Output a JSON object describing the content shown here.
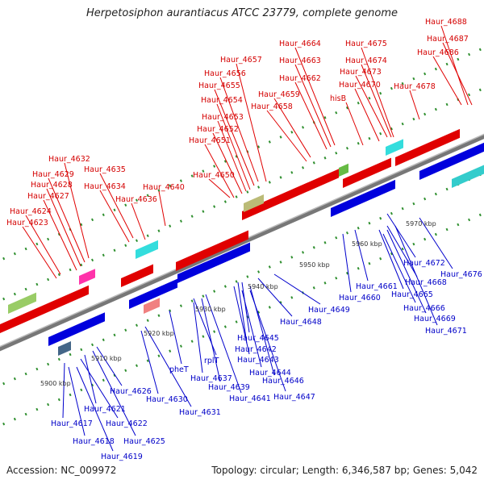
{
  "title": "Herpetosiphon aurantiacus ATCC 23779, complete genome",
  "footer": {
    "accession": "Accession: NC_009972",
    "summary": "Topology: circular; Length: 6,346,587 bp; Genes: 5,042"
  },
  "scale_labels": [
    "5900 kbp",
    "5910 kbp",
    "5920 kbp",
    "5930 kbp",
    "5940 kbp",
    "5950 kbp",
    "5960 kbp",
    "5970 kbp"
  ],
  "top_labels": [
    "Haur_4688",
    "Haur_4687",
    "Haur_4686",
    "Haur_4678",
    "Haur_4675",
    "Haur_4674",
    "Haur_4673",
    "Haur_4670",
    "hisB",
    "Haur_4664",
    "Haur_4663",
    "Haur_4662",
    "Haur_4659",
    "Haur_4658",
    "Haur_4657",
    "Haur_4656",
    "Haur_4655",
    "Haur_4654",
    "Haur_4653",
    "Haur_4652",
    "Haur_4651",
    "Haur_4650",
    "Haur_4640",
    "Haur_4636",
    "Haur_4635",
    "Haur_4634",
    "Haur_4632",
    "Haur_4629",
    "Haur_4628",
    "Haur_4627",
    "Haur_4624",
    "Haur_4623"
  ],
  "bottom_labels": [
    "Haur_4676",
    "Haur_4672",
    "Haur_4668",
    "Haur_4665",
    "Haur_4666",
    "Haur_4669",
    "Haur_4671",
    "Haur_4661",
    "Haur_4660",
    "Haur_4649",
    "Haur_4648",
    "Haur_4645",
    "Haur_4642",
    "Haur_4643",
    "Haur_4644",
    "Haur_4646",
    "Haur_4647",
    "rplT",
    "Haur_4637",
    "Haur_4639",
    "Haur_4641",
    "pheT",
    "Haur_4630",
    "Haur_4631",
    "Haur_4626",
    "Haur_4625",
    "Haur_4621",
    "Haur_4622",
    "Haur_4617",
    "Haur_4618",
    "Haur_4619"
  ],
  "colors": {
    "forward": "#ee0000",
    "reverse": "#0000dd",
    "backbone": "#888888",
    "tick": "#339933"
  }
}
